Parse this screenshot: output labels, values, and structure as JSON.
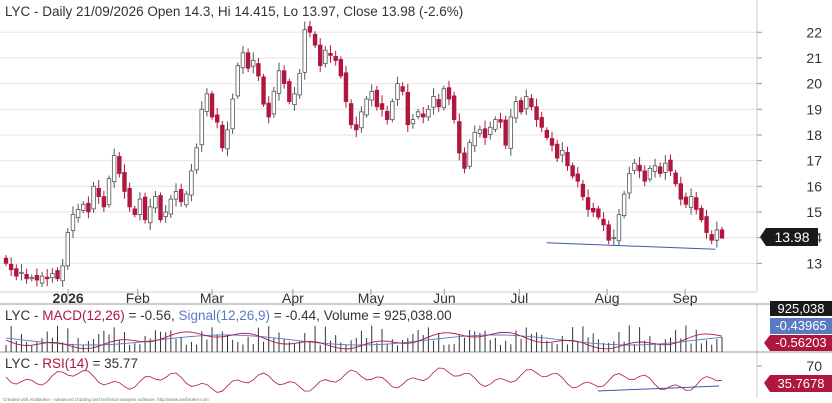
{
  "header": {
    "title": "LYC - Daily 21/09/2026 Open 14.3, Hi 14.415, Lo 13.97, Close 13.98 (-2.6%)"
  },
  "macd_header": {
    "p1": "LYC - ",
    "p2": "MACD(12,26)",
    "p3": " = -0.56, ",
    "p4": "Signal(12,26,9)",
    "p5": " = -0.44, Volume = 925,038.00"
  },
  "rsi_header": {
    "p1": "LYC - ",
    "p2": "RSI(14)",
    "p3": " = 35.77"
  },
  "footer": "Created with AmiBroker - advanced charting and technical analysis software. http://www.amibroker.com",
  "badges": {
    "close": "13.98",
    "volume": "925,038",
    "signal": "-0.43965",
    "macd": "-0.56203",
    "rsi": "35.7678"
  },
  "colors": {
    "up": "#ffffff",
    "down": "#b0173e",
    "candle_outline": "#555555",
    "trendline": "#3d5aa8",
    "macd_line": "#b0173e",
    "signal_line": "#5a7bc4",
    "rsi_line": "#b0173e",
    "volume": "#333333",
    "grid": "#e6e6e6"
  },
  "chart_data": [
    {
      "type": "candlestick",
      "title": "LYC - Daily 21/09/2026 Open 14.3, Hi 14.415, Lo 13.97, Close 13.98 (-2.6%)",
      "ylim": [
        12,
        22.4
      ],
      "yticks": [
        "13",
        "14",
        "15",
        "16",
        "17",
        "18",
        "19",
        "20",
        "21",
        "22"
      ],
      "x_labels": [
        "2026",
        "Feb",
        "Mar",
        "Apr",
        "May",
        "Jun",
        "Jul",
        "Aug",
        "Sep"
      ],
      "last": {
        "date": "21/09/2026",
        "open": 14.3,
        "high": 14.415,
        "low": 13.97,
        "close": 13.98,
        "change": "-2.6%"
      },
      "closes": [
        13.0,
        12.75,
        12.5,
        12.65,
        12.4,
        12.45,
        12.35,
        12.5,
        12.4,
        12.6,
        12.4,
        12.9,
        14.2,
        14.9,
        15.1,
        15.3,
        15.0,
        16.0,
        15.6,
        15.2,
        16.3,
        17.2,
        16.5,
        15.8,
        15.2,
        14.9,
        15.5,
        14.7,
        15.2,
        15.6,
        14.7,
        15.0,
        15.5,
        15.8,
        15.4,
        15.7,
        16.6,
        17.5,
        19.0,
        19.6,
        18.7,
        18.5,
        17.5,
        18.2,
        19.4,
        20.7,
        21.2,
        20.6,
        20.9,
        20.3,
        19.2,
        18.7,
        19.7,
        20.5,
        20.0,
        19.3,
        19.6,
        20.4,
        22.1,
        22.0,
        21.5,
        20.7,
        21.3,
        21.1,
        20.9,
        20.3,
        19.3,
        18.4,
        18.2,
        18.9,
        19.4,
        19.7,
        19.1,
        19.0,
        18.6,
        19.3,
        20.0,
        19.7,
        18.4,
        18.6,
        18.9,
        18.7,
        19.0,
        19.5,
        19.1,
        19.8,
        19.4,
        18.6,
        17.3,
        16.7,
        17.7,
        18.1,
        18.2,
        17.9,
        18.3,
        18.6,
        18.5,
        17.6,
        18.7,
        19.3,
        18.9,
        19.5,
        19.1,
        18.6,
        18.3,
        17.9,
        17.6,
        17.1,
        17.4,
        16.8,
        16.4,
        16.2,
        15.6,
        15.1,
        15.0,
        14.8,
        14.5,
        13.9,
        14.0,
        14.9,
        15.7,
        16.5,
        16.9,
        16.6,
        16.2,
        16.7,
        16.8,
        16.5,
        16.9,
        16.6,
        16.1,
        15.5,
        15.3,
        15.6,
        15.1,
        14.7,
        14.2,
        13.9,
        14.3,
        13.98
      ],
      "trendlines": [
        {
          "from": {
            "month": "Jul",
            "price": 13.8
          },
          "to": {
            "month": "Sep",
            "price": 13.55
          }
        }
      ]
    },
    {
      "type": "bar+line",
      "title": "LYC - MACD(12,26) = -0.56, Signal(12,26,9) = -0.44, Volume = 925,038.00",
      "series": [
        {
          "name": "MACD(12,26)",
          "last": -0.56
        },
        {
          "name": "Signal(12,26,9)",
          "last": -0.44
        },
        {
          "name": "Volume",
          "last": 925038.0
        }
      ]
    },
    {
      "type": "line",
      "title": "LYC - RSI(14) = 35.77",
      "yticks": [
        "70"
      ],
      "series": [
        {
          "name": "RSI(14)",
          "last": 35.77
        }
      ]
    }
  ]
}
